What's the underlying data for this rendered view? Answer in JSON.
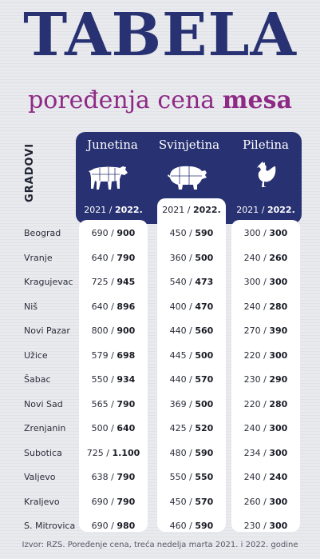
{
  "title": "TABELA",
  "subtitle_prefix": "poređenja cena",
  "subtitle_emph": "mesa",
  "row_header": "GRADOVI",
  "columns": [
    {
      "label": "Junetina",
      "icon": "cow-icon",
      "year_old": "2021",
      "year_new": "2022."
    },
    {
      "label": "Svinjetina",
      "icon": "pig-icon",
      "year_old": "2021",
      "year_new": "2022."
    },
    {
      "label": "Piletina",
      "icon": "chicken-icon",
      "year_old": "2021",
      "year_new": "2022."
    }
  ],
  "rows": [
    {
      "city": "Beograd",
      "values": [
        [
          "690",
          "900"
        ],
        [
          "450",
          "590"
        ],
        [
          "300",
          "300"
        ]
      ]
    },
    {
      "city": "Vranje",
      "values": [
        [
          "640",
          "790"
        ],
        [
          "360",
          "500"
        ],
        [
          "240",
          "260"
        ]
      ]
    },
    {
      "city": "Kragujevac",
      "values": [
        [
          "725",
          "945"
        ],
        [
          "540",
          "473"
        ],
        [
          "300",
          "300"
        ]
      ]
    },
    {
      "city": "Niš",
      "values": [
        [
          "640",
          "896"
        ],
        [
          "400",
          "470"
        ],
        [
          "240",
          "280"
        ]
      ]
    },
    {
      "city": "Novi Pazar",
      "values": [
        [
          "800",
          "900"
        ],
        [
          "440",
          "560"
        ],
        [
          "270",
          "390"
        ]
      ]
    },
    {
      "city": "Užice",
      "values": [
        [
          "579",
          "698"
        ],
        [
          "445",
          "500"
        ],
        [
          "220",
          "300"
        ]
      ]
    },
    {
      "city": "Šabac",
      "values": [
        [
          "550",
          "934"
        ],
        [
          "440",
          "570"
        ],
        [
          "230",
          "290"
        ]
      ]
    },
    {
      "city": "Novi Sad",
      "values": [
        [
          "565",
          "790"
        ],
        [
          "369",
          "500"
        ],
        [
          "220",
          "280"
        ]
      ]
    },
    {
      "city": "Zrenjanin",
      "values": [
        [
          "500",
          "640"
        ],
        [
          "425",
          "520"
        ],
        [
          "240",
          "300"
        ]
      ]
    },
    {
      "city": "Subotica",
      "values": [
        [
          "725",
          "1.100"
        ],
        [
          "480",
          "590"
        ],
        [
          "234",
          "300"
        ]
      ]
    },
    {
      "city": "Valjevo",
      "values": [
        [
          "638",
          "790"
        ],
        [
          "550",
          "550"
        ],
        [
          "240",
          "240"
        ]
      ]
    },
    {
      "city": "Kraljevo",
      "values": [
        [
          "690",
          "790"
        ],
        [
          "450",
          "570"
        ],
        [
          "260",
          "300"
        ]
      ]
    },
    {
      "city": "S. Mitrovica",
      "values": [
        [
          "690",
          "980"
        ],
        [
          "460",
          "590"
        ],
        [
          "230",
          "300"
        ]
      ]
    }
  ],
  "source": "Izvor: RZS. Poređenje cena, treća nedelja marta 2021. i 2022. godine",
  "colors": {
    "navy": "#283272",
    "purple": "#8e2a86"
  }
}
